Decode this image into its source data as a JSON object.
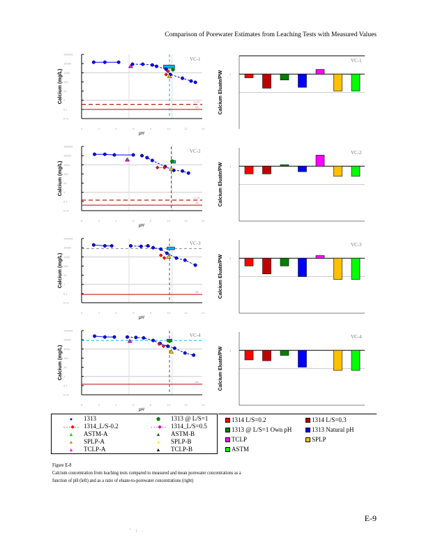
{
  "header": "Comparison of Porewater Estimates from Leaching Tests with Measured Values",
  "page_number": "E-9",
  "footer_marks": "' ; .",
  "left_ylabel": "Calcium (mg/L)",
  "right_ylabel": "Calcium Eluate/PW",
  "left_xlabel": "pH",
  "left_legend": [
    {
      "label": "1313",
      "marker": "circle",
      "color": "#0000ff"
    },
    {
      "label": "1313 @ L/S=1",
      "marker": "pentagon",
      "color": "#008000"
    },
    {
      "label": "1314_L/S-0.2",
      "marker": "diamond-dashed",
      "color": "#ff0000"
    },
    {
      "label": "1314_L/S=0.5",
      "marker": "diamond-dashed",
      "color": "#cc00cc"
    },
    {
      "label": "ASTM-A",
      "marker": "triangle",
      "color": "#00cc00"
    },
    {
      "label": "ASTM-B",
      "marker": "triangle",
      "color": "#006600"
    },
    {
      "label": "SPLP-A",
      "marker": "triangle",
      "color": "#cc8800"
    },
    {
      "label": "SPLP-B",
      "marker": "triangle",
      "color": "#ffff00"
    },
    {
      "label": "TCLP-A",
      "marker": "triangle",
      "color": "#ff00ff"
    },
    {
      "label": "TCLP-B",
      "marker": "triangle",
      "color": "#ffffff"
    }
  ],
  "right_legend": [
    {
      "label": "1314 L/S=0.2",
      "color": "#ff0000"
    },
    {
      "label": "1314 L/S=0.3",
      "color": "#c00000"
    },
    {
      "label": "1313 @ L/S=1 Own pH",
      "color": "#008000"
    },
    {
      "label": "1313 Natural pH",
      "color": "#0000ff"
    },
    {
      "label": "TCLP",
      "color": "#ff00ff"
    },
    {
      "label": "SPLP",
      "color": "#ffc000"
    },
    {
      "label": "ASTM",
      "color": "#00ff00"
    }
  ],
  "caption": {
    "title": "Figure E-8",
    "text": "Calcium concentration from leaching tests compared to measured and mean porewater concentrations as a function of pH (left) and as a ratio of eluate-to-porewater concentrations (right)"
  },
  "chart_data": [
    {
      "type": "scatter",
      "panel": "VC-1",
      "xlim": [
        0,
        14
      ],
      "ylim": [
        0.01,
        100000
      ],
      "log_y": true,
      "xticks": [
        "0",
        "2",
        "4",
        "6",
        "8",
        "10",
        "12",
        "14"
      ],
      "yticks": [
        "100000",
        "10000",
        "1000",
        "100",
        "10",
        "1",
        "0.1",
        "0.01"
      ],
      "line_labels": [
        "LLM",
        "ML"
      ],
      "natural_ph": 10.2,
      "pw_range": {
        "x": [
          9.5,
          10.8
        ],
        "y": [
          3000,
          7000
        ]
      },
      "series_1313": [
        [
          1.4,
          14000
        ],
        [
          2.7,
          14000
        ],
        [
          4.3,
          14000
        ],
        [
          5.9,
          8500
        ],
        [
          7.1,
          8500
        ],
        [
          8.2,
          7000
        ],
        [
          8.7,
          5000
        ],
        [
          9.8,
          2500
        ],
        [
          10.3,
          630
        ],
        [
          11.7,
          250
        ],
        [
          12.7,
          125
        ],
        [
          13.2,
          90
        ]
      ],
      "solid_count": 3,
      "series_1314": [
        [
          9.8,
          630
        ],
        [
          10.0,
          1500
        ]
      ],
      "tclp_a": [
        [
          5.7,
          5000
        ]
      ],
      "splp_a": [
        [
          10.2,
          400
        ]
      ],
      "lsi": [
        [
          10.6,
          2200
        ]
      ],
      "llm": 0.35,
      "ml": 0.1,
      "grid": [
        1000,
        1
      ]
    },
    {
      "type": "scatter",
      "panel": "VC-2",
      "xlim": [
        0,
        14
      ],
      "ylim": [
        0.01,
        100000
      ],
      "log_y": true,
      "xticks": [
        "0",
        "2",
        "4",
        "6",
        "8",
        "10",
        "12",
        "14"
      ],
      "yticks": [
        "100000",
        "10000",
        "1000",
        "100",
        "10",
        "1",
        "0.1",
        "0.01"
      ],
      "line_labels": [
        "LLM",
        "ML"
      ],
      "natural_ph": 10.4,
      "pw_range": {
        "x": [
          10.4,
          10.9
        ],
        "y": [
          1500,
          3000
        ]
      },
      "series_1313": [
        [
          1.5,
          14000
        ],
        [
          2.7,
          14000
        ],
        [
          3.8,
          12000
        ],
        [
          6.0,
          12000
        ],
        [
          7.0,
          10000
        ],
        [
          7.6,
          6000
        ],
        [
          8.2,
          3000
        ],
        [
          9.7,
          630
        ],
        [
          10.7,
          250
        ],
        [
          11.7,
          210
        ],
        [
          12.4,
          125
        ]
      ],
      "solid_count": 4,
      "series_1314": [
        [
          8.8,
          500
        ],
        [
          9.6,
          500
        ]
      ],
      "tclp_a": [
        [
          5.3,
          3500
        ]
      ],
      "splp_a": [
        [
          10.4,
          350
        ]
      ],
      "lsi": [
        [
          10.5,
          2500
        ]
      ],
      "llm": 0.14,
      "ml": 0.04,
      "grid": [
        1000,
        1
      ]
    },
    {
      "type": "scatter",
      "panel": "VC-3",
      "xlim": [
        0,
        14
      ],
      "ylim": [
        0.01,
        100000
      ],
      "log_y": true,
      "xticks": [
        "0",
        "2",
        "4",
        "6",
        "8",
        "10",
        "12",
        "14"
      ],
      "yticks": [
        "100000",
        "10000",
        "1000",
        "100",
        "10",
        "1",
        "0.1",
        "0.01"
      ],
      "line_labels": [
        "LLM",
        "ML"
      ],
      "natural_ph": 10.2,
      "pw_range": {
        "x": [
          9.9,
          10.8
        ],
        "y": [
          6000,
          12000
        ]
      },
      "series_1313": [
        [
          1.4,
          20000
        ],
        [
          2.7,
          16000
        ],
        [
          3.5,
          16000
        ],
        [
          5.7,
          16000
        ],
        [
          6.9,
          14000
        ],
        [
          7.7,
          16000
        ],
        [
          8.3,
          10000
        ],
        [
          9.2,
          7000
        ],
        [
          9.9,
          2500
        ],
        [
          11.0,
          740
        ],
        [
          12.0,
          440
        ],
        [
          13.2,
          125
        ]
      ],
      "solid_count": 3,
      "series_1314": [
        [
          9.2,
          1500
        ],
        [
          9.6,
          750
        ]
      ],
      "tclp_a": [],
      "splp_a": [
        [
          10.1,
          1000
        ]
      ],
      "lsi": [],
      "mean_pw": 8000,
      "ml": 0.08,
      "grid": [
        1000,
        1
      ]
    },
    {
      "type": "scatter",
      "panel": "VC-4",
      "xlim": [
        0,
        14
      ],
      "ylim": [
        0.01,
        100000
      ],
      "log_y": true,
      "xticks": [
        "0",
        "2",
        "4",
        "6",
        "8",
        "10",
        "12",
        "14"
      ],
      "yticks": [
        "100000",
        "10000",
        "1000",
        "100",
        "10",
        "1",
        "0.1",
        "0.01"
      ],
      "line_labels": [
        "LLM",
        "ML"
      ],
      "natural_ph": 10.2,
      "pw_range": {
        "x": [
          9.9,
          10.5
        ],
        "y": [
          6000,
          12000
        ]
      },
      "series_1313": [
        [
          1.5,
          25000
        ],
        [
          2.7,
          20000
        ],
        [
          3.8,
          20000
        ],
        [
          5.3,
          20000
        ],
        [
          6.3,
          18000
        ],
        [
          7.2,
          16000
        ],
        [
          8.3,
          8500
        ],
        [
          9.1,
          4000
        ],
        [
          10.0,
          2000
        ],
        [
          10.8,
          1200
        ],
        [
          12.0,
          360
        ],
        [
          13.0,
          210
        ]
      ],
      "solid_count": 3,
      "series_1314": [
        [
          9.0,
          3500
        ],
        [
          9.5,
          2000
        ]
      ],
      "tclp_a": [
        [
          5.6,
          7000
        ]
      ],
      "splp_a": [
        [
          10.4,
          500
        ]
      ],
      "lsi": [
        [
          10.2,
          7500
        ]
      ],
      "mean_pw": 8500,
      "ml": 0.14,
      "grid": [
        1000,
        1
      ]
    },
    {
      "type": "bar",
      "panel": "VC-1",
      "log_y": true,
      "ylim": [
        0.001,
        10
      ],
      "yticks": [
        "",
        "1",
        "",
        ""
      ],
      "categories": [
        "1314 L/S=0.2",
        "1314 L/S=0.3",
        "1313 @ L/S=1 Own pH",
        "1313 Natural pH",
        "TCLP",
        "SPLP",
        "ASTM"
      ],
      "values": [
        0.63,
        0.17,
        0.48,
        0.19,
        1.8,
        0.12,
        0.12
      ]
    },
    {
      "type": "bar",
      "panel": "VC-2",
      "log_y": true,
      "ylim": [
        0.001,
        10
      ],
      "yticks": [
        "",
        "1",
        "",
        ""
      ],
      "categories": [
        "1314 L/S=0.2",
        "1314 L/S=0.3",
        "1313 @ L/S=1 Own pH",
        "1313 Natural pH",
        "TCLP",
        "SPLP",
        "ASTM"
      ],
      "values": [
        0.38,
        0.38,
        1.2,
        0.5,
        4,
        0.28,
        0.28
      ]
    },
    {
      "type": "bar",
      "panel": "VC-3",
      "log_y": true,
      "ylim": [
        0.001,
        10
      ],
      "yticks": [
        "",
        "1",
        "",
        ""
      ],
      "categories": [
        "1314 L/S=0.2",
        "1314 L/S=0.3",
        "1313 @ L/S=1 Own pH",
        "1313 Natural pH",
        "TCLP",
        "SPLP",
        "ASTM"
      ],
      "values": [
        0.38,
        0.14,
        0.38,
        0.1,
        1.4,
        0.07,
        0.07
      ]
    },
    {
      "type": "bar",
      "panel": "VC-4",
      "log_y": true,
      "ylim": [
        0.001,
        10
      ],
      "yticks": [
        "",
        "1",
        "",
        ""
      ],
      "categories": [
        "1314 L/S=0.2",
        "1314 L/S=0.3",
        "1313 @ L/S=1 Own pH",
        "1313 Natural pH",
        "TCLP",
        "SPLP",
        "ASTM"
      ],
      "values": [
        0.3,
        0.27,
        0.53,
        0.12,
        null,
        0.08,
        0.08
      ]
    }
  ]
}
